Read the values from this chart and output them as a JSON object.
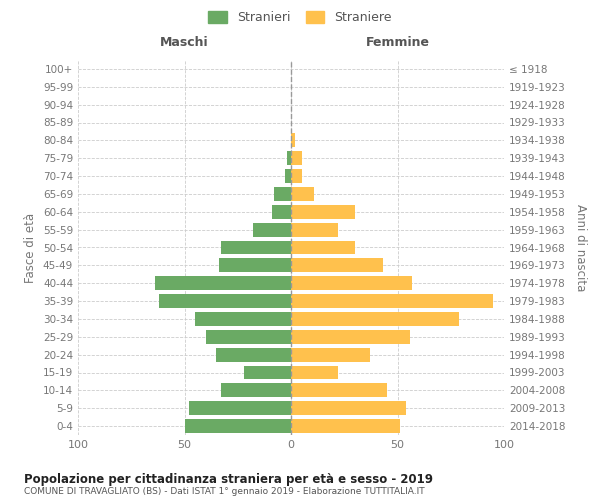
{
  "age_groups": [
    "0-4",
    "5-9",
    "10-14",
    "15-19",
    "20-24",
    "25-29",
    "30-34",
    "35-39",
    "40-44",
    "45-49",
    "50-54",
    "55-59",
    "60-64",
    "65-69",
    "70-74",
    "75-79",
    "80-84",
    "85-89",
    "90-94",
    "95-99",
    "100+"
  ],
  "birth_years": [
    "2014-2018",
    "2009-2013",
    "2004-2008",
    "1999-2003",
    "1994-1998",
    "1989-1993",
    "1984-1988",
    "1979-1983",
    "1974-1978",
    "1969-1973",
    "1964-1968",
    "1959-1963",
    "1954-1958",
    "1949-1953",
    "1944-1948",
    "1939-1943",
    "1934-1938",
    "1929-1933",
    "1924-1928",
    "1919-1923",
    "≤ 1918"
  ],
  "maschi": [
    50,
    48,
    33,
    22,
    35,
    40,
    45,
    62,
    64,
    34,
    33,
    18,
    9,
    8,
    3,
    2,
    0,
    0,
    0,
    0,
    0
  ],
  "femmine": [
    51,
    54,
    45,
    22,
    37,
    56,
    79,
    95,
    57,
    43,
    30,
    22,
    30,
    11,
    5,
    5,
    2,
    0,
    0,
    0,
    0
  ],
  "male_color": "#6aaa64",
  "female_color": "#ffc14d",
  "background_color": "#ffffff",
  "grid_color": "#cccccc",
  "title": "Popolazione per cittadinanza straniera per età e sesso - 2019",
  "subtitle": "COMUNE DI TRAVAGLIATO (BS) - Dati ISTAT 1° gennaio 2019 - Elaborazione TUTTITALIA.IT",
  "ylabel_left": "Fasce di età",
  "ylabel_right": "Anni di nascita",
  "xlabel_left": "Maschi",
  "xlabel_right": "Femmine",
  "legend_male": "Stranieri",
  "legend_female": "Straniere",
  "xlim": 100
}
